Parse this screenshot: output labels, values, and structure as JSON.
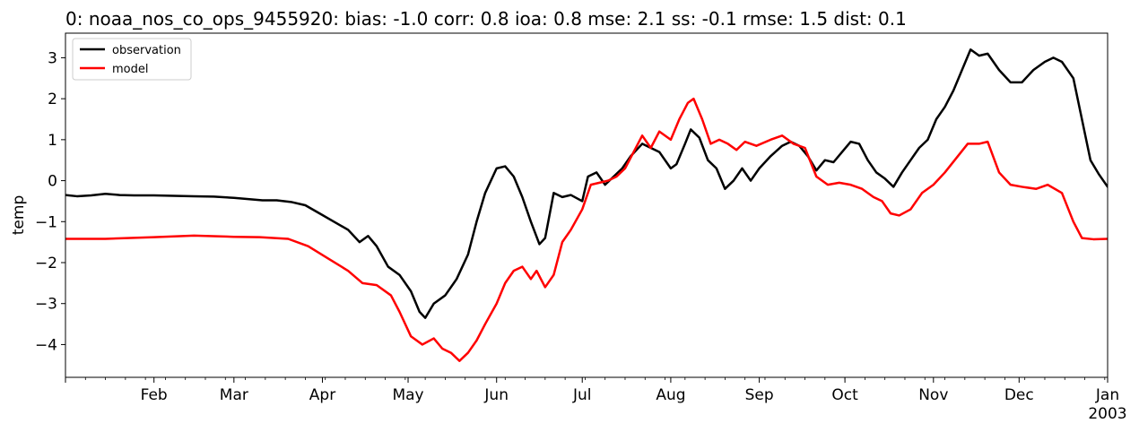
{
  "chart_data": {
    "type": "line",
    "title": "0: noaa_nos_co_ops_9455920: bias: -1.0  corr: 0.8  ioa: 0.8  mse: 2.1  ss: -0.1  rmse: 1.5  dist: 0.1",
    "xlabel": "",
    "ylabel": "temp",
    "xlim": [
      "2002-01-01",
      "2003-01-01"
    ],
    "ylim": [
      -4.8,
      3.6
    ],
    "x_ticks": [
      "2002-02-01",
      "2002-03-01",
      "2002-04-01",
      "2002-05-01",
      "2002-06-01",
      "2002-07-01",
      "2002-08-01",
      "2002-09-01",
      "2002-10-01",
      "2002-11-01",
      "2002-12-01",
      "2003-01-01"
    ],
    "x_tick_labels": [
      "Feb",
      "Mar",
      "Apr",
      "May",
      "Jun",
      "Jul",
      "Aug",
      "Sep",
      "Oct",
      "Nov",
      "Dec",
      "Jan"
    ],
    "x_tick_sublabel": "2003",
    "y_ticks": [
      3,
      2,
      1,
      0,
      -1,
      -2,
      -3,
      -4
    ],
    "y_tick_labels": [
      "3",
      "2",
      "1",
      "0",
      "−1",
      "−2",
      "−3",
      "−4"
    ],
    "grid": false,
    "legend_position": "top-left",
    "series": [
      {
        "name": "observation",
        "color": "#000000",
        "points": [
          [
            "2002-01-01",
            -0.35
          ],
          [
            "2002-01-05",
            -0.38
          ],
          [
            "2002-01-10",
            -0.36
          ],
          [
            "2002-01-15",
            -0.32
          ],
          [
            "2002-01-20",
            -0.35
          ],
          [
            "2002-01-25",
            -0.36
          ],
          [
            "2002-02-01",
            -0.36
          ],
          [
            "2002-02-08",
            -0.37
          ],
          [
            "2002-02-15",
            -0.38
          ],
          [
            "2002-02-22",
            -0.39
          ],
          [
            "2002-03-01",
            -0.42
          ],
          [
            "2002-03-06",
            -0.45
          ],
          [
            "2002-03-11",
            -0.48
          ],
          [
            "2002-03-16",
            -0.48
          ],
          [
            "2002-03-21",
            -0.52
          ],
          [
            "2002-03-26",
            -0.6
          ],
          [
            "2002-03-31",
            -0.8
          ],
          [
            "2002-04-05",
            -1.0
          ],
          [
            "2002-04-10",
            -1.2
          ],
          [
            "2002-04-14",
            -1.5
          ],
          [
            "2002-04-17",
            -1.35
          ],
          [
            "2002-04-20",
            -1.6
          ],
          [
            "2002-04-24",
            -2.1
          ],
          [
            "2002-04-28",
            -2.3
          ],
          [
            "2002-05-02",
            -2.7
          ],
          [
            "2002-05-05",
            -3.2
          ],
          [
            "2002-05-07",
            -3.35
          ],
          [
            "2002-05-10",
            -3.0
          ],
          [
            "2002-05-14",
            -2.8
          ],
          [
            "2002-05-18",
            -2.4
          ],
          [
            "2002-05-22",
            -1.8
          ],
          [
            "2002-05-25",
            -1.0
          ],
          [
            "2002-05-28",
            -0.3
          ],
          [
            "2002-06-01",
            0.3
          ],
          [
            "2002-06-04",
            0.35
          ],
          [
            "2002-06-07",
            0.1
          ],
          [
            "2002-06-10",
            -0.4
          ],
          [
            "2002-06-13",
            -1.0
          ],
          [
            "2002-06-16",
            -1.55
          ],
          [
            "2002-06-18",
            -1.4
          ],
          [
            "2002-06-21",
            -0.3
          ],
          [
            "2002-06-24",
            -0.4
          ],
          [
            "2002-06-27",
            -0.35
          ],
          [
            "2002-07-01",
            -0.5
          ],
          [
            "2002-07-03",
            0.1
          ],
          [
            "2002-07-06",
            0.2
          ],
          [
            "2002-07-09",
            -0.1
          ],
          [
            "2002-07-12",
            0.1
          ],
          [
            "2002-07-15",
            0.3
          ],
          [
            "2002-07-18",
            0.6
          ],
          [
            "2002-07-22",
            0.9
          ],
          [
            "2002-07-25",
            0.8
          ],
          [
            "2002-07-28",
            0.7
          ],
          [
            "2002-08-01",
            0.3
          ],
          [
            "2002-08-03",
            0.4
          ],
          [
            "2002-08-06",
            0.9
          ],
          [
            "2002-08-08",
            1.25
          ],
          [
            "2002-08-11",
            1.05
          ],
          [
            "2002-08-14",
            0.5
          ],
          [
            "2002-08-17",
            0.3
          ],
          [
            "2002-08-20",
            -0.2
          ],
          [
            "2002-08-23",
            0.0
          ],
          [
            "2002-08-26",
            0.3
          ],
          [
            "2002-08-29",
            0.0
          ],
          [
            "2002-09-01",
            0.3
          ],
          [
            "2002-09-05",
            0.6
          ],
          [
            "2002-09-09",
            0.85
          ],
          [
            "2002-09-12",
            0.95
          ],
          [
            "2002-09-15",
            0.85
          ],
          [
            "2002-09-18",
            0.6
          ],
          [
            "2002-09-21",
            0.25
          ],
          [
            "2002-09-24",
            0.5
          ],
          [
            "2002-09-27",
            0.45
          ],
          [
            "2002-09-30",
            0.7
          ],
          [
            "2002-10-03",
            0.95
          ],
          [
            "2002-10-06",
            0.9
          ],
          [
            "2002-10-09",
            0.5
          ],
          [
            "2002-10-12",
            0.2
          ],
          [
            "2002-10-15",
            0.05
          ],
          [
            "2002-10-18",
            -0.15
          ],
          [
            "2002-10-21",
            0.2
          ],
          [
            "2002-10-24",
            0.5
          ],
          [
            "2002-10-27",
            0.8
          ],
          [
            "2002-10-30",
            1.0
          ],
          [
            "2002-11-02",
            1.5
          ],
          [
            "2002-11-05",
            1.8
          ],
          [
            "2002-11-08",
            2.2
          ],
          [
            "2002-11-11",
            2.7
          ],
          [
            "2002-11-14",
            3.2
          ],
          [
            "2002-11-17",
            3.05
          ],
          [
            "2002-11-20",
            3.1
          ],
          [
            "2002-11-24",
            2.7
          ],
          [
            "2002-11-28",
            2.4
          ],
          [
            "2002-12-02",
            2.4
          ],
          [
            "2002-12-06",
            2.7
          ],
          [
            "2002-12-10",
            2.9
          ],
          [
            "2002-12-13",
            3.0
          ],
          [
            "2002-12-16",
            2.9
          ],
          [
            "2002-12-20",
            2.5
          ],
          [
            "2002-12-23",
            1.5
          ],
          [
            "2002-12-26",
            0.5
          ],
          [
            "2002-12-29",
            0.15
          ],
          [
            "2003-01-01",
            -0.15
          ]
        ]
      },
      {
        "name": "model",
        "color": "#ff0000",
        "points": [
          [
            "2002-01-01",
            -1.42
          ],
          [
            "2002-01-15",
            -1.42
          ],
          [
            "2002-02-01",
            -1.38
          ],
          [
            "2002-02-15",
            -1.34
          ],
          [
            "2002-03-01",
            -1.37
          ],
          [
            "2002-03-10",
            -1.38
          ],
          [
            "2002-03-20",
            -1.42
          ],
          [
            "2002-03-27",
            -1.6
          ],
          [
            "2002-04-03",
            -1.9
          ],
          [
            "2002-04-10",
            -2.2
          ],
          [
            "2002-04-15",
            -2.5
          ],
          [
            "2002-04-20",
            -2.55
          ],
          [
            "2002-04-25",
            -2.8
          ],
          [
            "2002-04-28",
            -3.2
          ],
          [
            "2002-05-02",
            -3.8
          ],
          [
            "2002-05-06",
            -4.0
          ],
          [
            "2002-05-10",
            -3.85
          ],
          [
            "2002-05-13",
            -4.1
          ],
          [
            "2002-05-16",
            -4.2
          ],
          [
            "2002-05-19",
            -4.4
          ],
          [
            "2002-05-22",
            -4.2
          ],
          [
            "2002-05-25",
            -3.9
          ],
          [
            "2002-05-28",
            -3.5
          ],
          [
            "2002-06-01",
            -3.0
          ],
          [
            "2002-06-04",
            -2.5
          ],
          [
            "2002-06-07",
            -2.2
          ],
          [
            "2002-06-10",
            -2.1
          ],
          [
            "2002-06-13",
            -2.4
          ],
          [
            "2002-06-15",
            -2.2
          ],
          [
            "2002-06-18",
            -2.6
          ],
          [
            "2002-06-21",
            -2.3
          ],
          [
            "2002-06-24",
            -1.5
          ],
          [
            "2002-06-27",
            -1.2
          ],
          [
            "2002-07-01",
            -0.7
          ],
          [
            "2002-07-04",
            -0.1
          ],
          [
            "2002-07-07",
            -0.05
          ],
          [
            "2002-07-10",
            0.0
          ],
          [
            "2002-07-13",
            0.1
          ],
          [
            "2002-07-16",
            0.3
          ],
          [
            "2002-07-19",
            0.7
          ],
          [
            "2002-07-22",
            1.1
          ],
          [
            "2002-07-25",
            0.8
          ],
          [
            "2002-07-28",
            1.2
          ],
          [
            "2002-08-01",
            1.0
          ],
          [
            "2002-08-04",
            1.5
          ],
          [
            "2002-08-07",
            1.9
          ],
          [
            "2002-08-09",
            2.0
          ],
          [
            "2002-08-12",
            1.5
          ],
          [
            "2002-08-15",
            0.9
          ],
          [
            "2002-08-18",
            1.0
          ],
          [
            "2002-08-21",
            0.9
          ],
          [
            "2002-08-24",
            0.75
          ],
          [
            "2002-08-27",
            0.95
          ],
          [
            "2002-08-31",
            0.85
          ],
          [
            "2002-09-05",
            1.0
          ],
          [
            "2002-09-09",
            1.1
          ],
          [
            "2002-09-13",
            0.9
          ],
          [
            "2002-09-17",
            0.8
          ],
          [
            "2002-09-21",
            0.1
          ],
          [
            "2002-09-25",
            -0.1
          ],
          [
            "2002-09-29",
            -0.05
          ],
          [
            "2002-10-03",
            -0.1
          ],
          [
            "2002-10-07",
            -0.2
          ],
          [
            "2002-10-11",
            -0.4
          ],
          [
            "2002-10-14",
            -0.5
          ],
          [
            "2002-10-17",
            -0.8
          ],
          [
            "2002-10-20",
            -0.85
          ],
          [
            "2002-10-24",
            -0.7
          ],
          [
            "2002-10-28",
            -0.3
          ],
          [
            "2002-11-01",
            -0.1
          ],
          [
            "2002-11-05",
            0.2
          ],
          [
            "2002-11-09",
            0.55
          ],
          [
            "2002-11-13",
            0.9
          ],
          [
            "2002-11-17",
            0.9
          ],
          [
            "2002-11-20",
            0.95
          ],
          [
            "2002-11-24",
            0.2
          ],
          [
            "2002-11-28",
            -0.1
          ],
          [
            "2002-12-02",
            -0.15
          ],
          [
            "2002-12-07",
            -0.2
          ],
          [
            "2002-12-11",
            -0.1
          ],
          [
            "2002-12-16",
            -0.3
          ],
          [
            "2002-12-20",
            -1.0
          ],
          [
            "2002-12-23",
            -1.4
          ],
          [
            "2002-12-27",
            -1.43
          ],
          [
            "2003-01-01",
            -1.42
          ]
        ]
      }
    ]
  }
}
